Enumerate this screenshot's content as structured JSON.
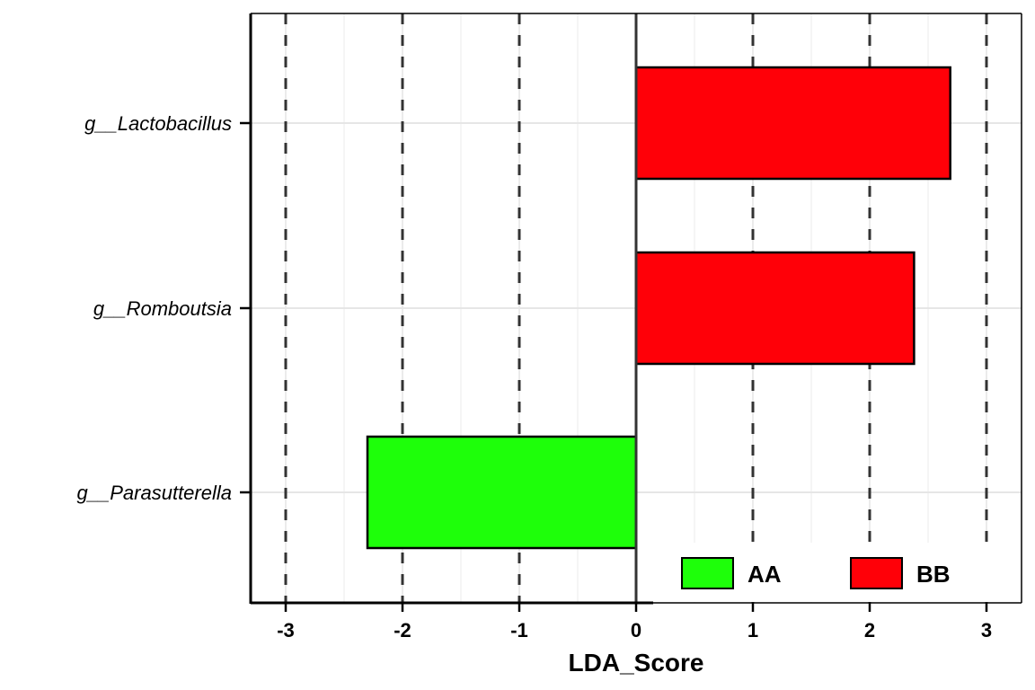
{
  "chart_data": {
    "type": "bar",
    "orientation": "horizontal",
    "categories": [
      "g__Lactobacillus",
      "g__Romboutsia",
      "g__Parasutterella"
    ],
    "values": [
      2.69,
      2.38,
      -2.3
    ],
    "groups": [
      "BB",
      "BB",
      "AA"
    ],
    "xlabel": "LDA_Score",
    "xlim": [
      -3.3,
      3.3
    ],
    "xticks": [
      -3,
      -2,
      -1,
      0,
      1,
      2,
      3
    ],
    "grid": true,
    "reference_lines": [
      -3,
      -2,
      -1,
      1,
      2,
      3
    ],
    "legend": {
      "position": "bottom-right",
      "entries": [
        {
          "label": "AA",
          "color": "#1EFF0A"
        },
        {
          "label": "BB",
          "color": "#FF0008"
        }
      ]
    },
    "colors": {
      "AA": "#1EFF0A",
      "BB": "#FF0008"
    }
  }
}
